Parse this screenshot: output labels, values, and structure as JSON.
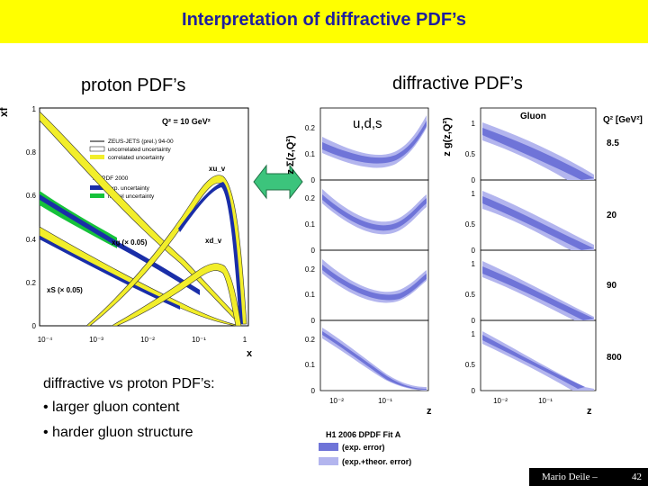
{
  "slide": {
    "title": "Interpretation of diffractive PDF’s",
    "left_heading": "proton PDF’s",
    "right_heading": "diffractive PDF’s",
    "quark_label": "u,d,s",
    "bullets_intro": "diffractive vs proton PDF’s:",
    "bullets": [
      "• larger gluon content",
      "• harder gluon structure"
    ],
    "footer_author": "Mario Deile –",
    "page_number": "42"
  },
  "proton_plot": {
    "y_axis_label": "xf",
    "x_axis_label": "x",
    "yticks": [
      "0",
      "0.2",
      "0.4",
      "0.6",
      "0.8",
      "1"
    ],
    "xticks": [
      "10⁻⁴",
      "10⁻³",
      "10⁻²",
      "10⁻¹",
      "1"
    ],
    "q2_label": "Q² = 10 GeV²",
    "legend": [
      "ZEUS-JETS (prel.) 94-00",
      "uncorrelated uncertainty",
      "correlated uncertainty",
      "H1 PDF 2000",
      "exp. uncertainty",
      "model uncertainty"
    ],
    "curve_labels": [
      "xu_v",
      "xd_v",
      "xg (× 0.05)",
      "xS (× 0.05)"
    ],
    "colors": {
      "yellow_band": "#f2ee2a",
      "blue_band": "#1a2ea8",
      "green_band": "#16c23a",
      "arrow": "#3cc47c"
    }
  },
  "dpdf_plot": {
    "left_ylabel": "z Σ(z,Q²)",
    "right_ylabel": "z g(z,Q²)",
    "gluon_label": "Gluon",
    "q2_header": "Q² [GeV²]",
    "q2_values": [
      "8.5",
      "20",
      "90",
      "800"
    ],
    "left_rows_ticks": [
      [
        "0",
        "0.1",
        "0.2"
      ],
      [
        "0",
        "0.1",
        "0.2"
      ],
      [
        "0",
        "0.1",
        "0.2"
      ],
      [
        "0",
        "0.1",
        "0.2"
      ]
    ],
    "right_rows_ticks": [
      [
        "0",
        "0.5",
        "1"
      ],
      [
        "0",
        "0.5",
        "1"
      ],
      [
        "0",
        "0.5",
        "1"
      ],
      [
        "0",
        "0.5",
        "1"
      ]
    ],
    "xticks": [
      "10⁻²",
      "10⁻¹"
    ],
    "x_axis_label": "z",
    "legend_title": "H1 2006 DPDF Fit A",
    "legend_items": [
      "(exp. error)",
      "(exp.+theor. error)"
    ],
    "colors": {
      "inner_band": "#6f74d8",
      "outer_band": "#b3b5ee",
      "line": "#4a4fb8"
    }
  }
}
